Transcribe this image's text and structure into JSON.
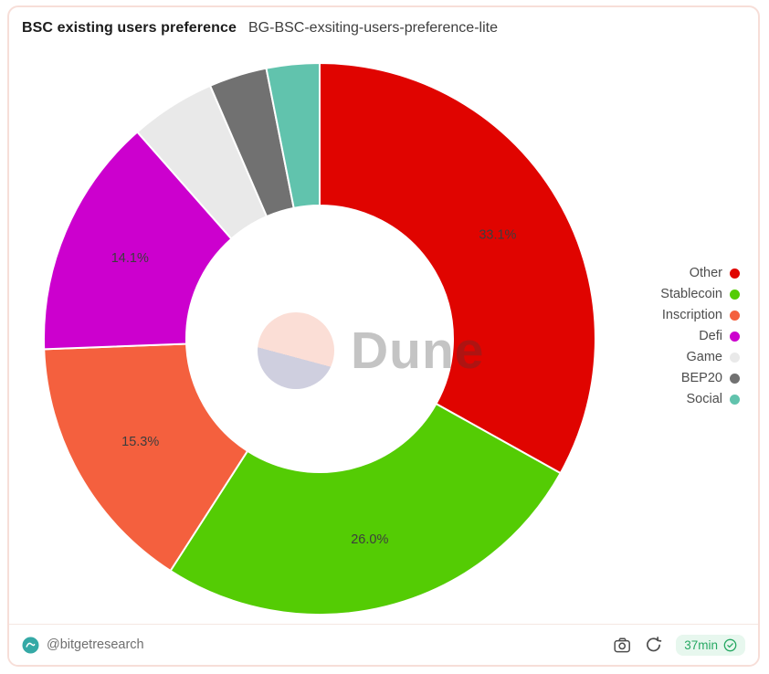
{
  "header": {
    "title": "BSC existing users preference",
    "subtitle": "BG-BSC-exsiting-users-preference-lite"
  },
  "chart_data": {
    "type": "pie",
    "subtype": "donut",
    "title": "BSC existing users preference",
    "legend_position": "right",
    "start_angle_deg": 0,
    "direction": "clockwise",
    "series": [
      {
        "name": "Other",
        "value": 33.1,
        "label": "33.1%",
        "color": "#e00400"
      },
      {
        "name": "Stablecoin",
        "value": 26.0,
        "label": "26.0%",
        "color": "#54cc04"
      },
      {
        "name": "Inscription",
        "value": 15.3,
        "label": "15.3%",
        "color": "#f4603e"
      },
      {
        "name": "Defi",
        "value": 14.1,
        "label": "14.1%",
        "color": "#cc00ce"
      },
      {
        "name": "Game",
        "value": 5.0,
        "label": "",
        "color": "#e9e9e9"
      },
      {
        "name": "BEP20",
        "value": 3.4,
        "label": "",
        "color": "#717171"
      },
      {
        "name": "Social",
        "value": 3.1,
        "label": "",
        "color": "#61c3ad"
      }
    ]
  },
  "watermark": {
    "text": "Dune"
  },
  "footer": {
    "author": "@bitgetresearch",
    "freshness": "37min",
    "action_icons": [
      "camera-icon",
      "refresh-icon"
    ],
    "freshness_icon": "verified-check-icon"
  },
  "colors": {
    "card-border": "#f7ded8",
    "badge-bg": "#e7f7ee",
    "badge-text": "#27a863",
    "avatar-teal": "#35a9a6",
    "icon-gray": "#4d4d4d"
  }
}
